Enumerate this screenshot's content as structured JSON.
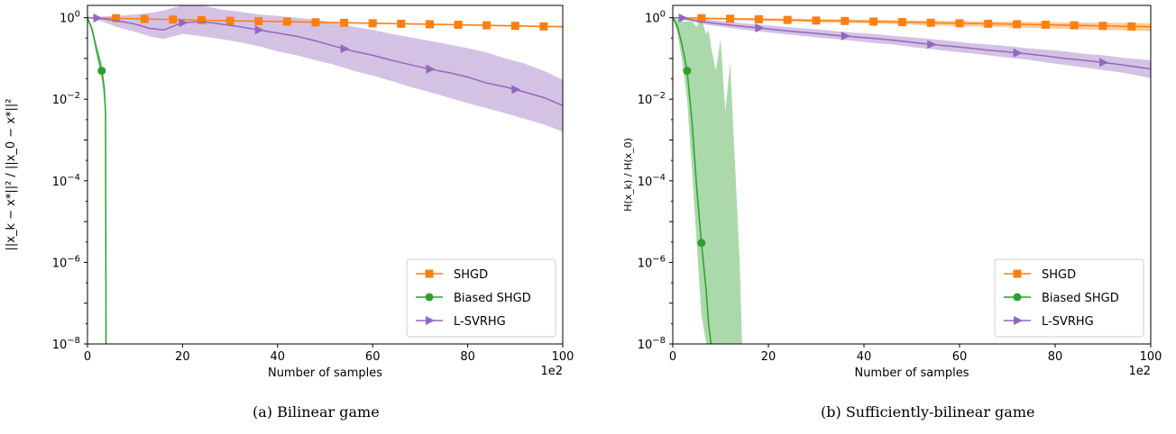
{
  "chart_data": [
    {
      "type": "line",
      "panel": "a",
      "caption": "(a) Bilinear game",
      "xlabel": "Number of samples",
      "x_multiplier": "1e2",
      "ylabel": "||x_k − x*||² / ||x_0 − x*||²",
      "yscale": "log",
      "xlim": [
        0,
        100
      ],
      "ylim": [
        1e-08,
        2
      ],
      "xticks": [
        "0",
        "20",
        "40",
        "60",
        "80",
        "100"
      ],
      "yticks": [
        {
          "base": "10",
          "exp": "0",
          "value": 1
        },
        {
          "base": "10",
          "exp": "−2",
          "value": 0.01
        },
        {
          "base": "10",
          "exp": "−4",
          "value": 0.0001
        },
        {
          "base": "10",
          "exp": "−6",
          "value": 1e-06
        },
        {
          "base": "10",
          "exp": "−8",
          "value": 1e-08
        }
      ],
      "legend": {
        "placement": "lower-right"
      },
      "series": [
        {
          "name": "SHGD",
          "color": "#ff7f0e",
          "marker": "square",
          "x": [
            0,
            6,
            12,
            18,
            24,
            30,
            36,
            42,
            48,
            54,
            60,
            66,
            72,
            78,
            84,
            90,
            96,
            100
          ],
          "y": [
            1,
            0.97,
            0.93,
            0.9,
            0.87,
            0.84,
            0.82,
            0.8,
            0.77,
            0.75,
            0.73,
            0.71,
            0.69,
            0.67,
            0.65,
            0.63,
            0.61,
            0.6
          ],
          "band_low": [
            1,
            0.95,
            0.9,
            0.87,
            0.84,
            0.81,
            0.79,
            0.77,
            0.74,
            0.72,
            0.7,
            0.68,
            0.66,
            0.64,
            0.62,
            0.6,
            0.58,
            0.57
          ],
          "band_high": [
            1,
            0.99,
            0.96,
            0.93,
            0.9,
            0.87,
            0.85,
            0.83,
            0.8,
            0.78,
            0.76,
            0.74,
            0.72,
            0.7,
            0.68,
            0.66,
            0.64,
            0.63
          ],
          "markers_x": [
            6,
            12,
            18,
            24,
            30,
            36,
            42,
            48,
            54,
            60,
            66,
            72,
            78,
            84,
            90,
            96
          ]
        },
        {
          "name": "Biased SHGD",
          "color": "#2ca02c",
          "marker": "circle",
          "x": [
            0,
            1,
            2,
            3,
            3.5,
            3.8,
            3.9
          ],
          "y": [
            1,
            0.5,
            0.15,
            0.05,
            0.02,
            0.005,
            1e-08
          ],
          "band_low": [
            1,
            0.4,
            0.1,
            0.03,
            0.01,
            0.002,
            1e-08
          ],
          "band_high": [
            1,
            0.6,
            0.2,
            0.08,
            0.03,
            0.008,
            1e-08
          ],
          "markers_x": [
            3
          ]
        },
        {
          "name": "L-SVRHG",
          "color": "#9467bd",
          "marker": "triangle-right",
          "x": [
            0,
            2,
            6,
            10,
            13,
            16,
            20,
            24,
            28,
            32,
            36,
            40,
            44,
            48,
            52,
            56,
            60,
            64,
            68,
            72,
            76,
            80,
            84,
            88,
            92,
            96,
            100
          ],
          "y": [
            1,
            0.98,
            0.85,
            0.7,
            0.55,
            0.5,
            0.75,
            0.8,
            0.7,
            0.6,
            0.5,
            0.42,
            0.35,
            0.27,
            0.2,
            0.15,
            0.12,
            0.09,
            0.07,
            0.055,
            0.045,
            0.035,
            0.025,
            0.02,
            0.015,
            0.011,
            0.007
          ],
          "band_low": [
            1,
            0.9,
            0.6,
            0.45,
            0.35,
            0.3,
            0.4,
            0.35,
            0.3,
            0.25,
            0.2,
            0.15,
            0.12,
            0.09,
            0.07,
            0.05,
            0.038,
            0.028,
            0.02,
            0.015,
            0.011,
            0.008,
            0.006,
            0.0045,
            0.0033,
            0.0024,
            0.0016
          ],
          "band_high": [
            1,
            1.05,
            1.1,
            1.2,
            1.3,
            1.5,
            2.0,
            2.0,
            1.6,
            1.4,
            1.2,
            1.1,
            1.0,
            0.9,
            0.75,
            0.6,
            0.5,
            0.4,
            0.33,
            0.27,
            0.22,
            0.18,
            0.14,
            0.1,
            0.075,
            0.05,
            0.03
          ],
          "markers_x": [
            2,
            20,
            36,
            54,
            72,
            90
          ]
        }
      ]
    },
    {
      "type": "line",
      "panel": "b",
      "caption": "(b) Sufficiently-bilinear game",
      "xlabel": "Number of samples",
      "x_multiplier": "1e2",
      "ylabel": "H(x_k) / H(x_0)",
      "yscale": "log",
      "xlim": [
        0,
        100
      ],
      "ylim": [
        1e-08,
        2
      ],
      "xticks": [
        "0",
        "20",
        "40",
        "60",
        "80",
        "100"
      ],
      "yticks": [
        {
          "base": "10",
          "exp": "0",
          "value": 1
        },
        {
          "base": "10",
          "exp": "−2",
          "value": 0.01
        },
        {
          "base": "10",
          "exp": "−4",
          "value": 0.0001
        },
        {
          "base": "10",
          "exp": "−6",
          "value": 1e-06
        },
        {
          "base": "10",
          "exp": "−8",
          "value": 1e-08
        }
      ],
      "legend": {
        "placement": "lower-right"
      },
      "series": [
        {
          "name": "SHGD",
          "color": "#ff7f0e",
          "marker": "square",
          "x": [
            0,
            6,
            12,
            18,
            24,
            30,
            36,
            42,
            48,
            54,
            60,
            66,
            72,
            78,
            84,
            90,
            96,
            100
          ],
          "y": [
            1,
            0.97,
            0.94,
            0.91,
            0.88,
            0.85,
            0.83,
            0.8,
            0.78,
            0.75,
            0.73,
            0.71,
            0.69,
            0.67,
            0.65,
            0.63,
            0.61,
            0.6
          ],
          "band_low": [
            1,
            0.93,
            0.88,
            0.84,
            0.8,
            0.77,
            0.74,
            0.71,
            0.68,
            0.65,
            0.62,
            0.6,
            0.57,
            0.55,
            0.52,
            0.5,
            0.48,
            0.47
          ],
          "band_high": [
            1,
            1.0,
            0.99,
            0.97,
            0.95,
            0.93,
            0.91,
            0.89,
            0.87,
            0.85,
            0.83,
            0.81,
            0.79,
            0.78,
            0.76,
            0.75,
            0.74,
            0.73
          ],
          "markers_x": [
            6,
            12,
            18,
            24,
            30,
            36,
            42,
            48,
            54,
            60,
            66,
            72,
            78,
            84,
            90,
            96
          ]
        },
        {
          "name": "Biased SHGD",
          "color": "#2ca02c",
          "marker": "circle",
          "x": [
            0,
            1,
            2,
            3,
            4,
            5,
            6,
            7,
            7.5,
            8
          ],
          "y": [
            1,
            0.6,
            0.2,
            0.05,
            0.003,
            7e-05,
            3e-06,
            2e-07,
            3e-08,
            1e-08
          ],
          "band_low": [
            1,
            0.4,
            0.08,
            0.01,
            0.0002,
            3e-06,
            5e-08,
            1e-08,
            1e-08,
            1e-08
          ],
          "band_high": [
            1,
            0.9,
            0.8,
            0.8,
            0.8,
            0.6,
            0.9,
            0.4,
            0.5,
            0.2
          ],
          "band_tail_x": [
            9,
            10,
            11,
            12,
            13,
            14,
            14.5
          ],
          "band_tail_high": [
            0.05,
            0.3,
            0.005,
            0.08,
            0.0003,
            1e-06,
            1e-08
          ],
          "markers_x": [
            3,
            6
          ]
        },
        {
          "name": "L-SVRHG",
          "color": "#9467bd",
          "marker": "triangle-right",
          "x": [
            0,
            2,
            6,
            10,
            14,
            18,
            22,
            26,
            30,
            34,
            38,
            42,
            46,
            50,
            54,
            58,
            62,
            66,
            70,
            74,
            78,
            82,
            86,
            90,
            94,
            100
          ],
          "y": [
            1,
            0.98,
            0.8,
            0.7,
            0.62,
            0.56,
            0.5,
            0.45,
            0.41,
            0.37,
            0.34,
            0.31,
            0.28,
            0.25,
            0.22,
            0.2,
            0.18,
            0.16,
            0.145,
            0.13,
            0.115,
            0.1,
            0.09,
            0.08,
            0.07,
            0.055
          ],
          "band_low": [
            1,
            0.9,
            0.7,
            0.6,
            0.52,
            0.46,
            0.41,
            0.37,
            0.33,
            0.3,
            0.27,
            0.24,
            0.22,
            0.19,
            0.17,
            0.15,
            0.135,
            0.12,
            0.105,
            0.095,
            0.08,
            0.07,
            0.06,
            0.052,
            0.045,
            0.033
          ],
          "band_high": [
            1,
            1.05,
            0.95,
            0.82,
            0.74,
            0.68,
            0.62,
            0.56,
            0.52,
            0.47,
            0.43,
            0.4,
            0.36,
            0.33,
            0.3,
            0.27,
            0.24,
            0.22,
            0.2,
            0.18,
            0.165,
            0.15,
            0.13,
            0.12,
            0.105,
            0.09
          ],
          "markers_x": [
            2,
            18,
            36,
            54,
            72,
            90
          ]
        }
      ]
    }
  ]
}
